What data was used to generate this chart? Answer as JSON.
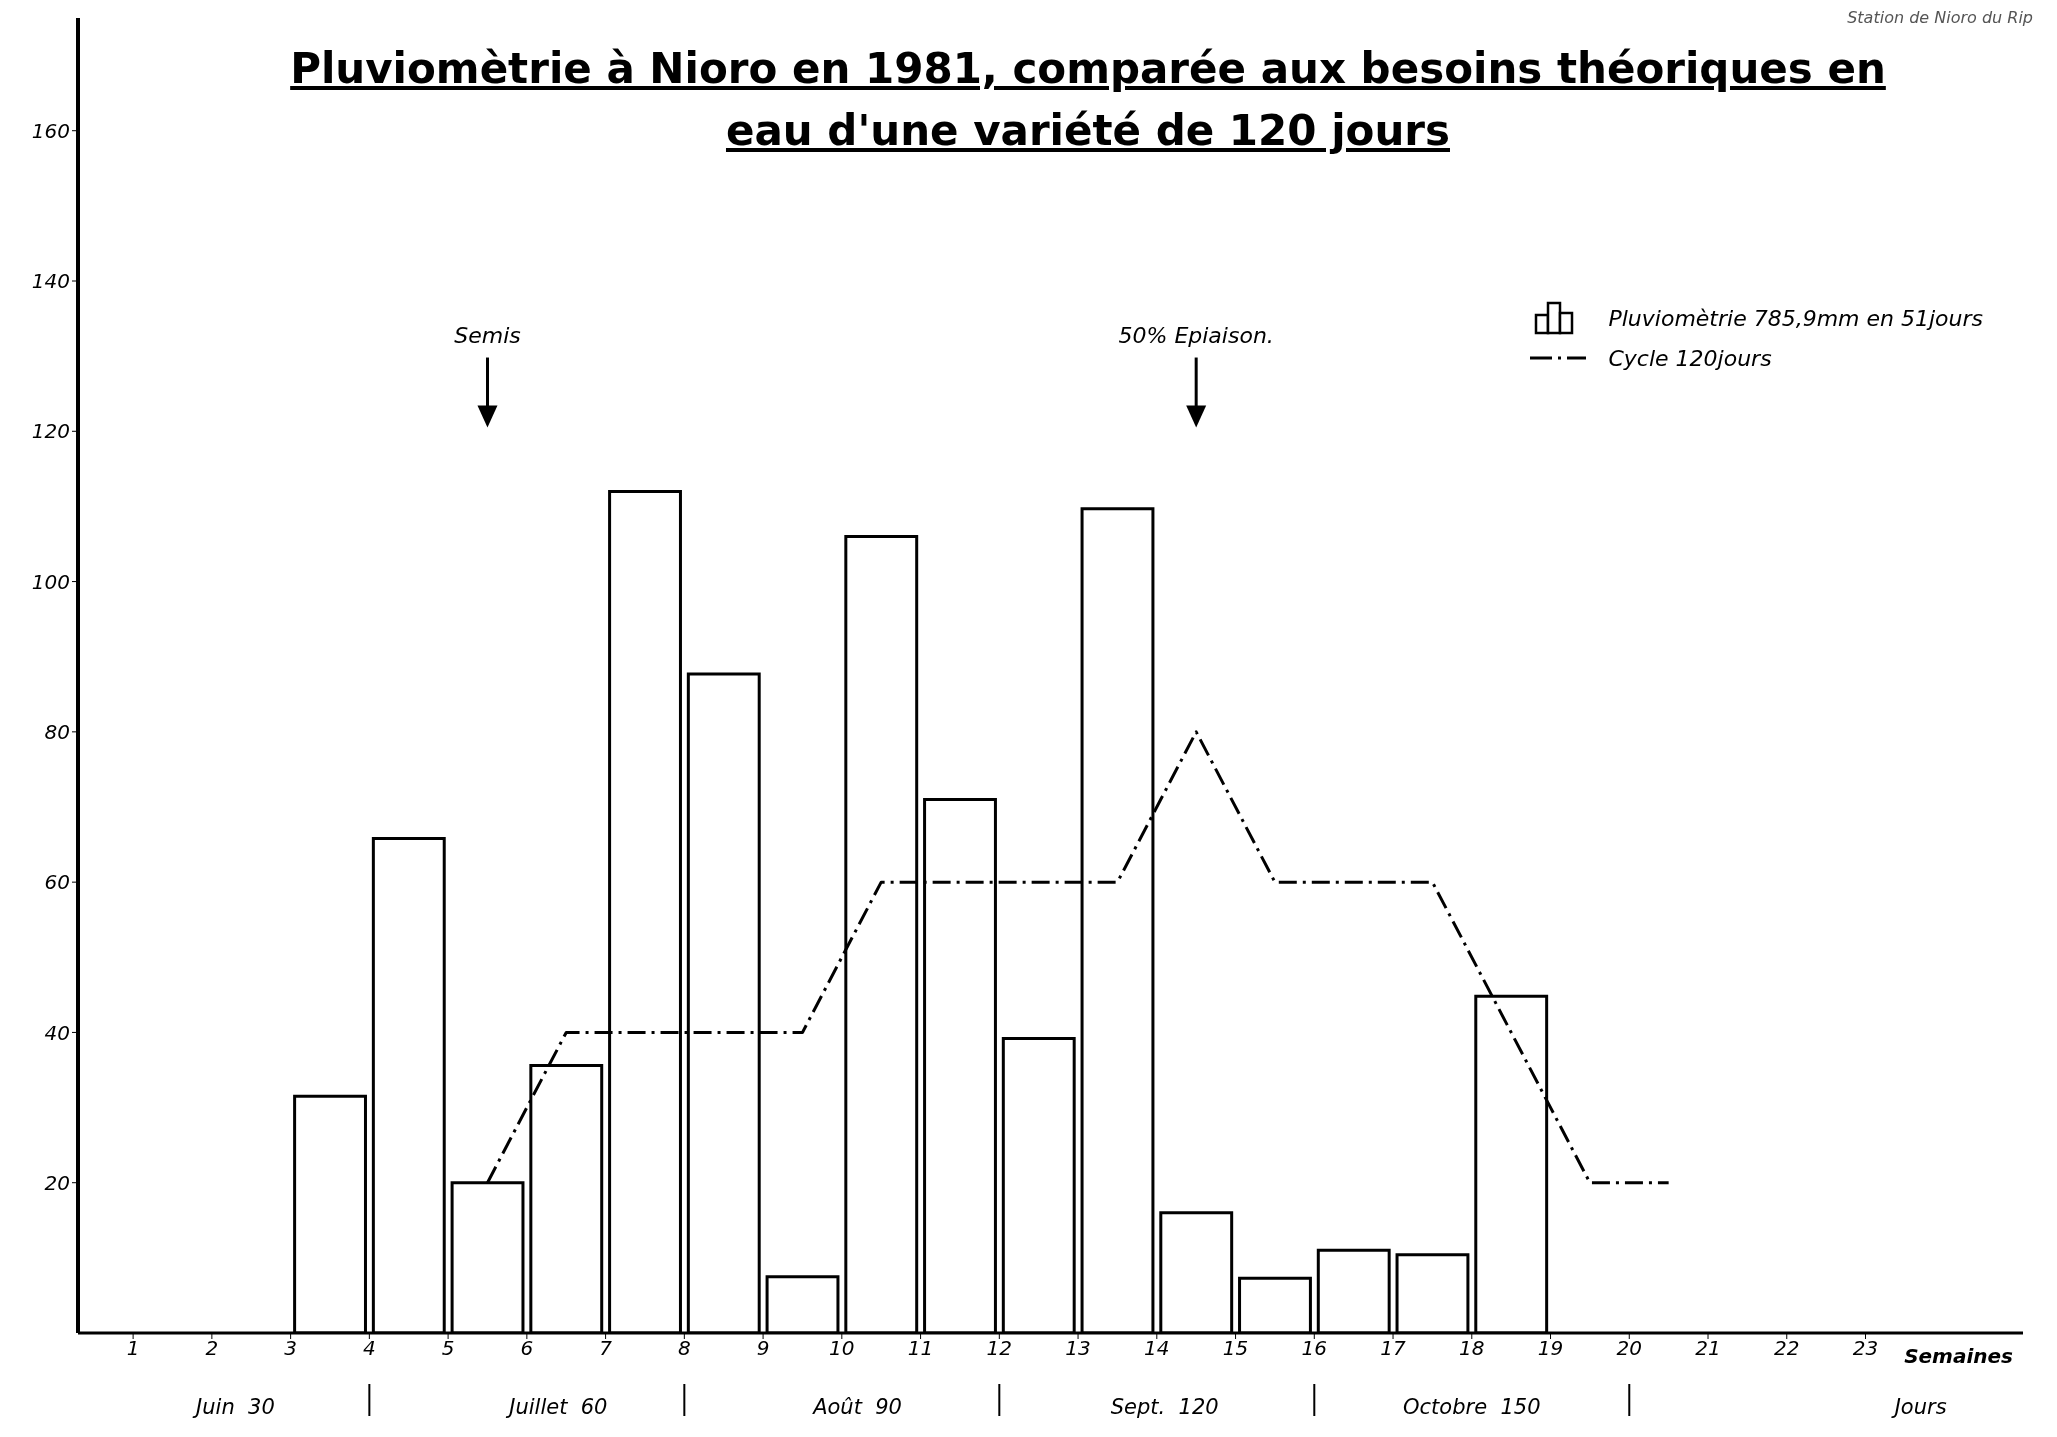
{
  "chart_data": {
    "type": "histogram",
    "title": "Pluviomètrie à Nioro en 1981, comparée aux besoins théoriques en eau d'une variété de 120 jours",
    "xlabel": "Semaines",
    "xlim": [
      0.3,
      25
    ],
    "xticks": [
      1,
      2,
      3,
      4,
      5,
      6,
      7,
      8,
      9,
      10,
      11,
      12,
      13,
      14,
      15,
      16,
      17,
      18,
      19,
      20,
      21,
      22,
      23
    ],
    "ylim": [
      0,
      175
    ],
    "yticks": [
      20,
      40,
      60,
      80,
      100,
      120,
      140,
      160
    ],
    "grid": false,
    "legend": "top right",
    "series": [
      {
        "name": "Pluviomètrie 785,9mm en 51jours",
        "color": "#000000",
        "bins": [
          3,
          4,
          5,
          6,
          7,
          8,
          9,
          10,
          11,
          12,
          13,
          14,
          15,
          16,
          17,
          18,
          19
        ],
        "values": [
          31.5,
          65.8,
          20,
          35.6,
          112,
          87.7,
          7.5,
          106,
          71,
          39.2,
          109.7,
          16,
          7.3,
          11,
          10.4,
          44.8
        ]
      },
      {
        "name": "Cycle 120jours",
        "type": "line",
        "line_style": "dashed",
        "color": "#000000",
        "x": [
          5.5,
          6.5,
          9.5,
          10.5,
          13.5,
          14.5,
          15.5,
          17.5,
          19.5,
          20.5
        ],
        "values": [
          20,
          40,
          40,
          60,
          60,
          80,
          60,
          60,
          20,
          20
        ]
      }
    ],
    "annotations": [
      "Semis",
      "50% Epiaison.",
      "Juin  30",
      "Juillet  60",
      "Août  90",
      "Sept.  120",
      "Octobre  150",
      "Jours",
      "Station de Nioro du Rip"
    ]
  }
}
